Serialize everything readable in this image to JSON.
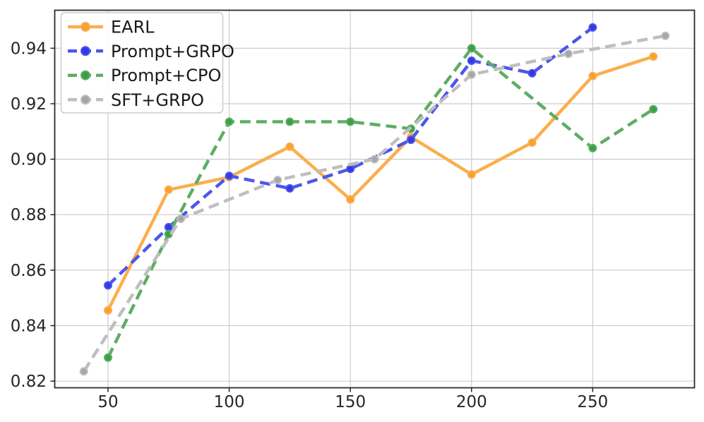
{
  "chart_data": {
    "type": "line",
    "title": "",
    "xlabel": "",
    "ylabel": "",
    "xlim": [
      28,
      292
    ],
    "ylim": [
      0.8176,
      0.9537
    ],
    "grid": true,
    "legend_position": "upper left",
    "x_ticks": [
      50,
      100,
      150,
      200,
      250
    ],
    "x_tick_labels": [
      "50",
      "100",
      "150",
      "200",
      "250"
    ],
    "y_ticks": [
      0.82,
      0.84,
      0.86,
      0.88,
      0.9,
      0.92,
      0.94
    ],
    "y_tick_labels": [
      "0.82",
      "0.84",
      "0.86",
      "0.88",
      "0.90",
      "0.92",
      "0.94"
    ],
    "series": [
      {
        "name": "EARL",
        "slug": "earl",
        "style": "solid",
        "line_color": "#FBAE4C",
        "marker_color": "#F7A133",
        "x": [
          50,
          75,
          100,
          125,
          150,
          175,
          200,
          225,
          250,
          275
        ],
        "y": [
          0.8455,
          0.889,
          0.8935,
          0.9045,
          0.8855,
          0.908,
          0.8945,
          0.906,
          0.93,
          0.937
        ]
      },
      {
        "name": "Prompt+GRPO",
        "slug": "prompt-grpo",
        "style": "dashed",
        "line_color": "#4C56ED",
        "marker_color": "#3439E4",
        "x": [
          50,
          75,
          100,
          125,
          150,
          175,
          200,
          225,
          250
        ],
        "y": [
          0.8545,
          0.8755,
          0.894,
          0.8895,
          0.8965,
          0.907,
          0.9355,
          0.931,
          0.9475
        ]
      },
      {
        "name": "Prompt+CPO",
        "slug": "prompt-cpo",
        "style": "dashed",
        "line_color": "#5EAD65",
        "marker_color": "#3C9F47",
        "x": [
          50,
          75,
          100,
          125,
          150,
          175,
          200,
          250,
          275
        ],
        "y": [
          0.8285,
          0.873,
          0.9135,
          0.9135,
          0.9135,
          0.911,
          0.94,
          0.904,
          0.918
        ]
      },
      {
        "name": "SFT+GRPO",
        "slug": "sft-grpo",
        "style": "dashed",
        "line_color": "#BEBEBE",
        "marker_color": "#A6A6A6",
        "x": [
          40,
          80,
          120,
          160,
          200,
          240,
          280
        ],
        "y": [
          0.8235,
          0.8785,
          0.8925,
          0.9,
          0.9305,
          0.938,
          0.9445
        ]
      }
    ]
  },
  "colors": {
    "background": "#FFFFFF",
    "grid": "#CCCCCC",
    "spine": "#2B2B2B",
    "tick": "#262626",
    "tick_label": "#262626",
    "legend_bg": "#FFFFFF",
    "legend_border": "#CCCCCC",
    "legend_text": "#1A1A1A"
  }
}
